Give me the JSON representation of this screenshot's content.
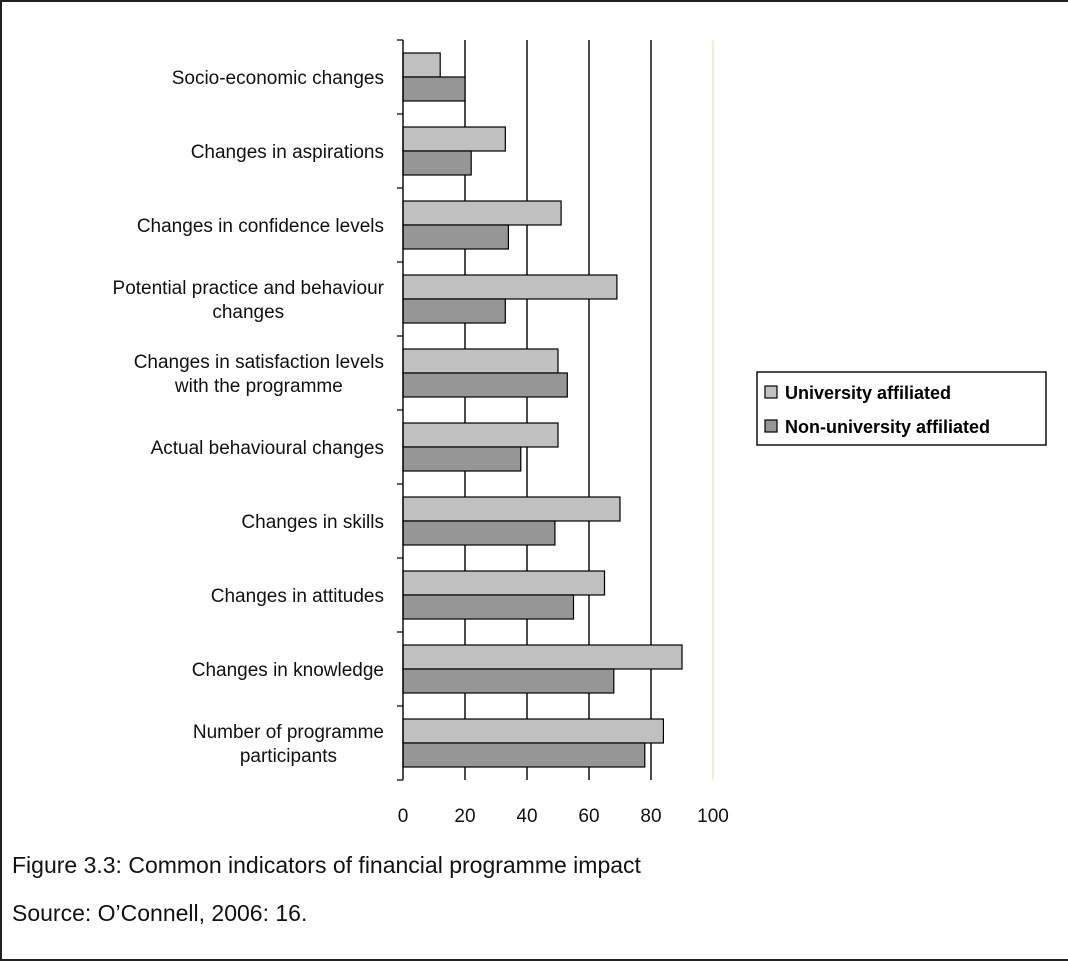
{
  "chart_data": {
    "type": "bar",
    "orientation": "horizontal",
    "categories": [
      "Socio-economic changes",
      "Changes in aspirations",
      "Changes in confidence levels",
      "Potential practice and behaviour changes",
      "Changes in satisfaction levels with the programme",
      "Actual behavioural changes",
      "Changes in skills",
      "Changes in attitudes",
      "Changes in knowledge",
      "Number of programme participants"
    ],
    "category_lines": [
      [
        "Socio-economic changes"
      ],
      [
        "Changes in aspirations"
      ],
      [
        "Changes in confidence levels"
      ],
      [
        "Potential practice and behaviour",
        "changes"
      ],
      [
        "Changes in satisfaction levels",
        "with the programme"
      ],
      [
        "Actual behavioural changes"
      ],
      [
        "Changes in skills"
      ],
      [
        "Changes in attitudes"
      ],
      [
        "Changes in knowledge"
      ],
      [
        "Number of programme",
        "participants"
      ]
    ],
    "series": [
      {
        "name": "University affiliated",
        "color": "#c0c0c0",
        "values": [
          12,
          33,
          51,
          69,
          50,
          50,
          70,
          65,
          90,
          84
        ]
      },
      {
        "name": "Non-university affiliated",
        "color": "#969696",
        "values": [
          20,
          22,
          34,
          33,
          53,
          38,
          49,
          55,
          68,
          78
        ]
      }
    ],
    "xlim": [
      0,
      100
    ],
    "xticks": [
      0,
      20,
      40,
      60,
      80,
      100
    ],
    "grid": true,
    "legend_position": "right"
  },
  "caption": {
    "title": "Figure 3.3: Common indicators of financial programme impact",
    "source": "Source: O’Connell, 2006: 16."
  }
}
